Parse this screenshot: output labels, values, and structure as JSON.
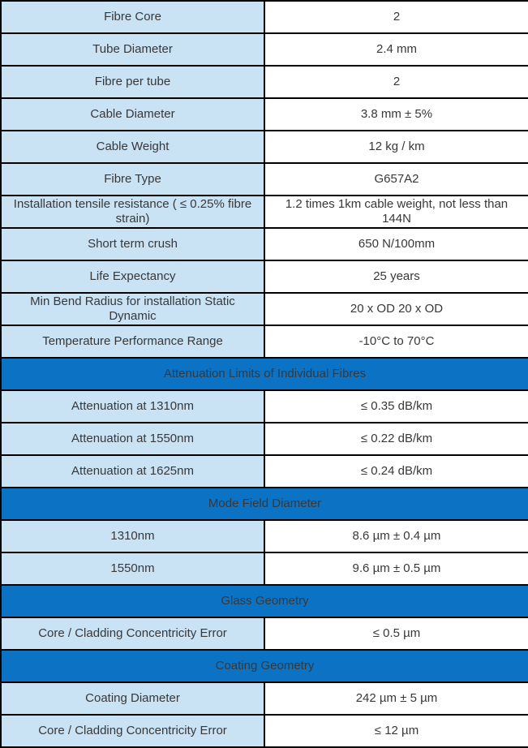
{
  "table": {
    "colors": {
      "header_bg": "#0C72C4",
      "label_bg": "#C9E2F4",
      "value_bg": "#FFFFFF",
      "border": "#000000",
      "text": "#383838",
      "header_text": "#FFFFFF"
    },
    "sections": [
      {
        "header": null,
        "rows": [
          {
            "label": "Fibre Core",
            "value": "2"
          },
          {
            "label": "Tube Diameter",
            "value": "2.4 mm"
          },
          {
            "label": "Fibre per tube",
            "value": "2"
          },
          {
            "label": "Cable Diameter",
            "value": "3.8 mm ± 5%"
          },
          {
            "label": "Cable Weight",
            "value": "12 kg / km"
          },
          {
            "label": "Fibre Type",
            "value": "G657A2"
          },
          {
            "label": "Installation tensile resistance ( ≤ 0.25% fibre strain)",
            "value": "1.2 times 1km cable weight, not less than 144N"
          },
          {
            "label": "Short term crush",
            "value": "650 N/100mm"
          },
          {
            "label": "Life Expectancy",
            "value": "25 years"
          },
          {
            "label": "Min Bend Radius for installation Static Dynamic",
            "value": "20 x OD 20 x OD"
          },
          {
            "label": "Temperature Performance Range",
            "value": "-10°C to 70°C"
          }
        ]
      },
      {
        "header": "Attenuation Limits of Individual Fibres",
        "rows": [
          {
            "label": "Attenuation at 1310nm",
            "value": "≤ 0.35 dB/km"
          },
          {
            "label": "Attenuation at 1550nm",
            "value": "≤ 0.22 dB/km"
          },
          {
            "label": "Attenuation at 1625nm",
            "value": "≤ 0.24 dB/km"
          }
        ]
      },
      {
        "header": "Mode Field Diameter",
        "rows": [
          {
            "label": "1310nm",
            "value": "8.6 µm ± 0.4 µm"
          },
          {
            "label": "1550nm",
            "value": "9.6 µm ± 0.5 µm"
          }
        ]
      },
      {
        "header": "Glass Geometry",
        "rows": [
          {
            "label": "Core / Cladding Concentricity Error",
            "value": "≤ 0.5 µm"
          }
        ]
      },
      {
        "header": "Coating Geometry",
        "rows": [
          {
            "label": "Coating Diameter",
            "value": "242 µm ± 5 µm"
          },
          {
            "label": "Core / Cladding Concentricity Error",
            "value": "≤ 12 µm"
          }
        ]
      }
    ]
  }
}
